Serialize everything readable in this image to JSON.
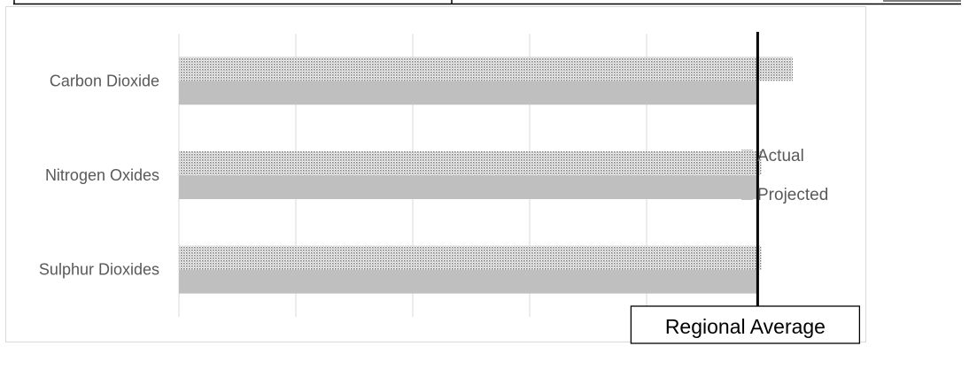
{
  "chart_data": {
    "type": "bar",
    "orientation": "horizontal",
    "categories": [
      "Carbon Dioxide",
      "Nitrogen Oxides",
      "Sulphur Dioxides"
    ],
    "series": [
      {
        "name": "Actual",
        "values": [
          5.25,
          4.98,
          4.98
        ],
        "pattern": "dotted",
        "color": "#808080"
      },
      {
        "name": "Projected",
        "values": [
          4.95,
          4.95,
          4.95
        ],
        "pattern": "solid",
        "color": "#bfbfbf"
      }
    ],
    "xlim": [
      0,
      6
    ],
    "grid": "vertical",
    "legend_position": "right",
    "reference_line": {
      "label": "Regional Average",
      "value": 4.95,
      "color": "#000000"
    }
  }
}
